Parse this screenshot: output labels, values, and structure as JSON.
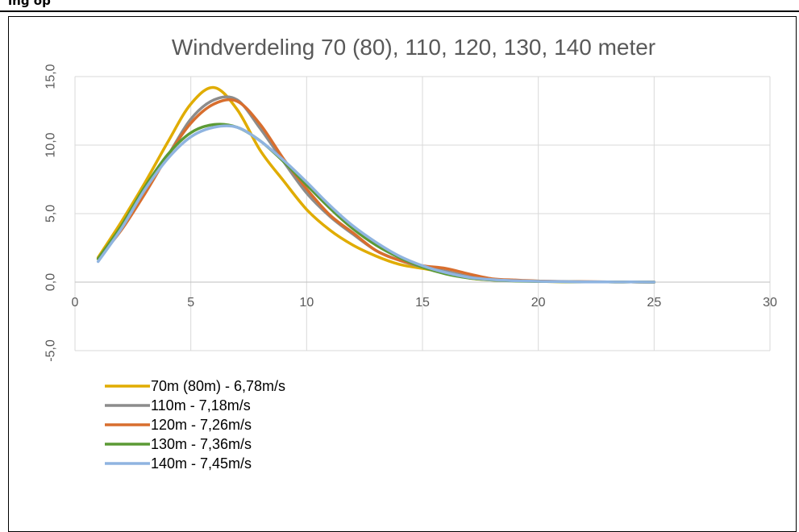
{
  "header_fragment": "ing op",
  "chart_data": {
    "type": "line",
    "title": "Windverdeling 70 (80), 110, 120, 130, 140 meter",
    "xlabel": "",
    "ylabel": "",
    "xlim": [
      0,
      30
    ],
    "ylim": [
      -5,
      15
    ],
    "xticks": [
      0,
      5,
      10,
      15,
      20,
      25,
      30
    ],
    "yticks": [
      -5,
      0,
      5,
      10,
      15
    ],
    "xtick_labels": [
      "0",
      "5",
      "10",
      "15",
      "20",
      "25",
      "30"
    ],
    "ytick_labels": [
      "-5,0",
      "0,0",
      "5,0",
      "10,0",
      "15,0"
    ],
    "grid": true,
    "legend_position": "bottom-left",
    "x": [
      1,
      2,
      3,
      4,
      5,
      6,
      7,
      8,
      9,
      10,
      11,
      12,
      13,
      14,
      15,
      16,
      17,
      18,
      19,
      20,
      21,
      22,
      23,
      24,
      25
    ],
    "series": [
      {
        "name": "70m (80m) - 6,78m/s",
        "color": "#E0AC00",
        "values": [
          1.8,
          4.4,
          7.2,
          10.2,
          13.0,
          14.2,
          12.6,
          9.6,
          7.4,
          5.3,
          3.8,
          2.7,
          1.9,
          1.3,
          1.0,
          0.7,
          0.3,
          0.15,
          0.1,
          0.05,
          0.03,
          0.02,
          0.01,
          0.01,
          0.0
        ]
      },
      {
        "name": "110m - 7,18m/s",
        "color": "#8C8C8C",
        "values": [
          1.7,
          4.0,
          6.6,
          9.2,
          11.9,
          13.3,
          13.3,
          11.2,
          8.8,
          6.5,
          4.8,
          3.5,
          2.3,
          1.6,
          1.1,
          0.8,
          0.4,
          0.2,
          0.1,
          0.07,
          0.04,
          0.03,
          0.02,
          0.01,
          0.0
        ]
      },
      {
        "name": "120m - 7,26m/s",
        "color": "#D86E2E",
        "values": [
          1.7,
          3.8,
          6.4,
          9.2,
          11.6,
          13.0,
          13.2,
          11.5,
          9.0,
          6.8,
          4.9,
          3.6,
          2.3,
          1.6,
          1.2,
          1.0,
          0.6,
          0.25,
          0.15,
          0.08,
          0.05,
          0.03,
          0.02,
          0.01,
          0.0
        ]
      },
      {
        "name": "130m - 7,36m/s",
        "color": "#5B9A35",
        "values": [
          1.7,
          4.1,
          6.9,
          9.3,
          10.9,
          11.5,
          11.3,
          10.3,
          8.8,
          7.1,
          5.4,
          3.9,
          2.7,
          1.8,
          1.1,
          0.6,
          0.3,
          0.15,
          0.08,
          0.05,
          0.03,
          0.02,
          0.01,
          0.01,
          0.0
        ]
      },
      {
        "name": "140m - 7,45m/s",
        "color": "#8FB4E0",
        "values": [
          1.5,
          3.9,
          6.7,
          9.0,
          10.6,
          11.3,
          11.3,
          10.3,
          8.9,
          7.3,
          5.6,
          4.1,
          2.9,
          1.9,
          1.2,
          0.7,
          0.35,
          0.18,
          0.1,
          0.06,
          0.04,
          0.02,
          0.01,
          0.01,
          0.0
        ]
      }
    ]
  }
}
